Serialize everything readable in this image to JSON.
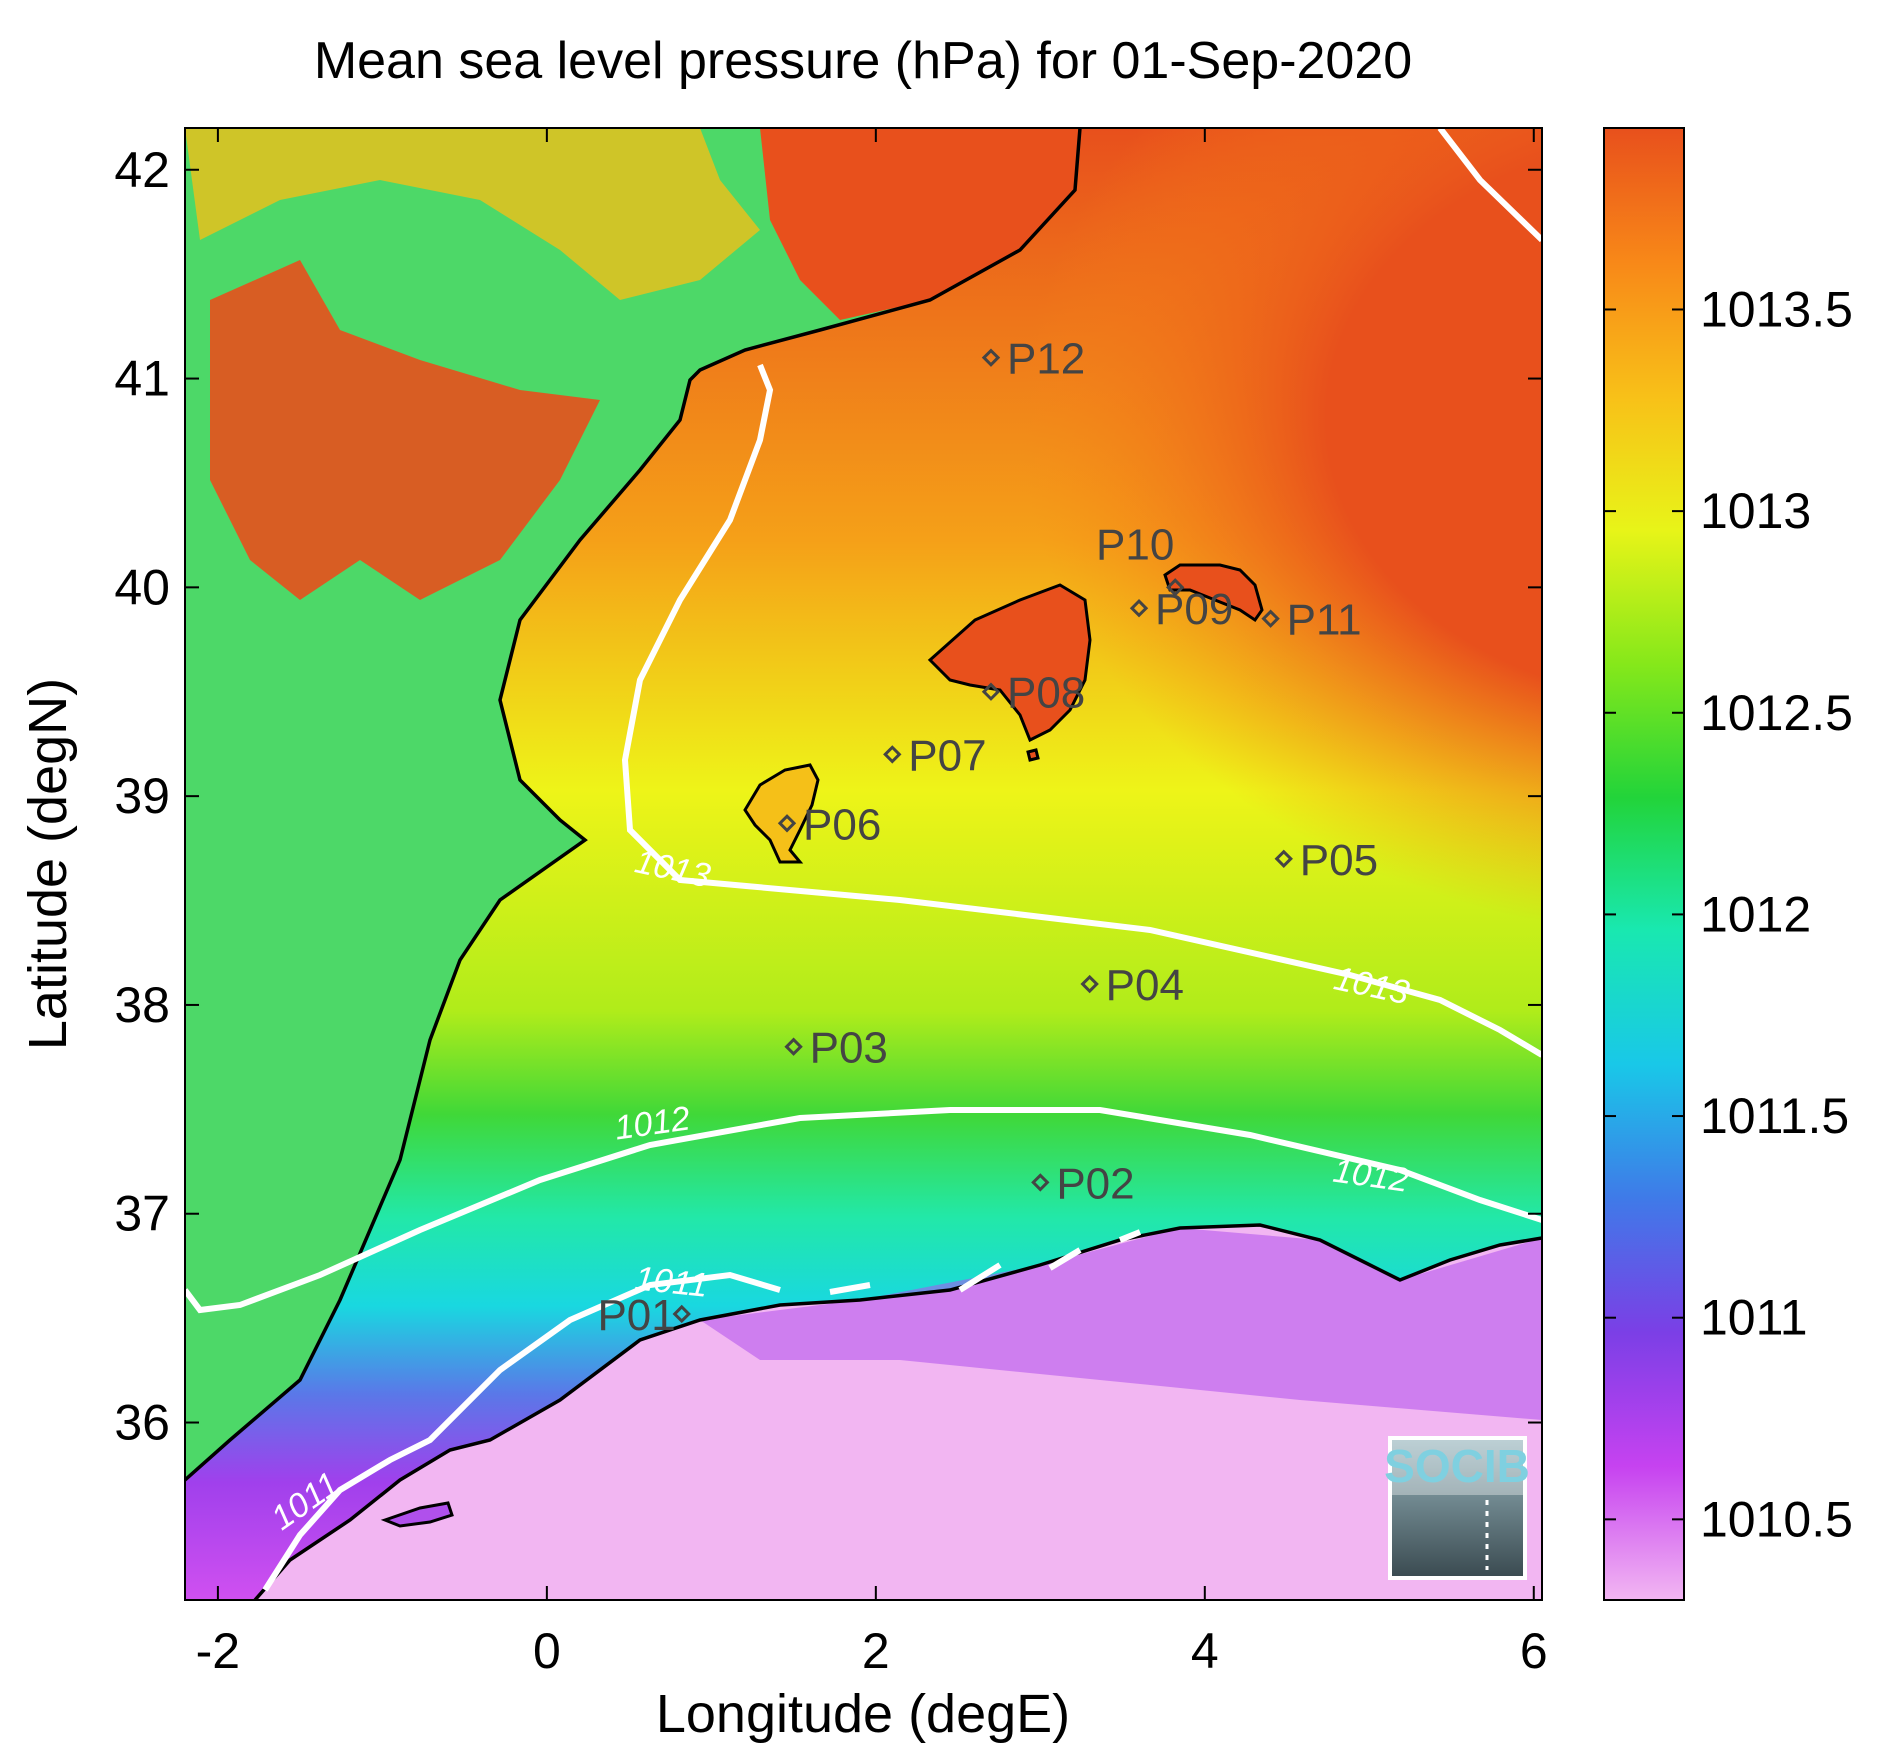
{
  "title": "Mean sea level pressure (hPa) for 01-Sep-2020",
  "axes": {
    "xlabel": "Longitude (degE)",
    "ylabel": "Latitude (degN)",
    "xlim": [
      -2.2,
      6.05
    ],
    "ylim": [
      35.15,
      42.2
    ],
    "xticks": [
      "-2",
      "0",
      "2",
      "4",
      "6"
    ],
    "yticks": [
      "36",
      "37",
      "38",
      "39",
      "40",
      "41",
      "42"
    ]
  },
  "colorbar": {
    "range": [
      1010.3,
      1013.95
    ],
    "ticks": [
      "1010.5",
      "1011",
      "1011.5",
      "1012",
      "1012.5",
      "1013",
      "1013.5"
    ],
    "colors": [
      "#f2b6f2",
      "#c642f0",
      "#7b3fe6",
      "#3f7ae8",
      "#19c8e8",
      "#19e8b0",
      "#22d43a",
      "#86e81a",
      "#e8f418",
      "#f8c018",
      "#f88818",
      "#e8501c"
    ]
  },
  "stations": [
    {
      "name": "P01",
      "lon": 0.82,
      "lat": 36.52
    },
    {
      "name": "P02",
      "lon": 3.0,
      "lat": 37.15
    },
    {
      "name": "P03",
      "lon": 1.5,
      "lat": 37.8
    },
    {
      "name": "P04",
      "lon": 3.3,
      "lat": 38.1
    },
    {
      "name": "P05",
      "lon": 4.48,
      "lat": 38.7
    },
    {
      "name": "P06",
      "lon": 1.46,
      "lat": 38.87
    },
    {
      "name": "P07",
      "lon": 2.1,
      "lat": 39.2
    },
    {
      "name": "P08",
      "lon": 2.7,
      "lat": 39.5
    },
    {
      "name": "P09",
      "lon": 3.6,
      "lat": 39.9
    },
    {
      "name": "P10",
      "lon": 3.82,
      "lat": 40.0
    },
    {
      "name": "P11",
      "lon": 4.4,
      "lat": 39.85
    },
    {
      "name": "P12",
      "lon": 2.7,
      "lat": 41.1
    }
  ],
  "contours": [
    {
      "level": "1011",
      "labels": [
        {
          "lon": 0.75,
          "lat": 36.62,
          "rot": 6
        },
        {
          "lon": -1.43,
          "lat": 35.58,
          "rot": -35
        }
      ]
    },
    {
      "level": "1012",
      "labels": [
        {
          "lon": 0.65,
          "lat": 37.38,
          "rot": -8
        },
        {
          "lon": 5.0,
          "lat": 37.13,
          "rot": 8
        }
      ]
    },
    {
      "level": "1013",
      "labels": [
        {
          "lon": 0.75,
          "lat": 38.6,
          "rot": 12
        },
        {
          "lon": 5.0,
          "lat": 38.04,
          "rot": 12
        }
      ]
    }
  ],
  "logo": {
    "text": "SOCIB"
  }
}
